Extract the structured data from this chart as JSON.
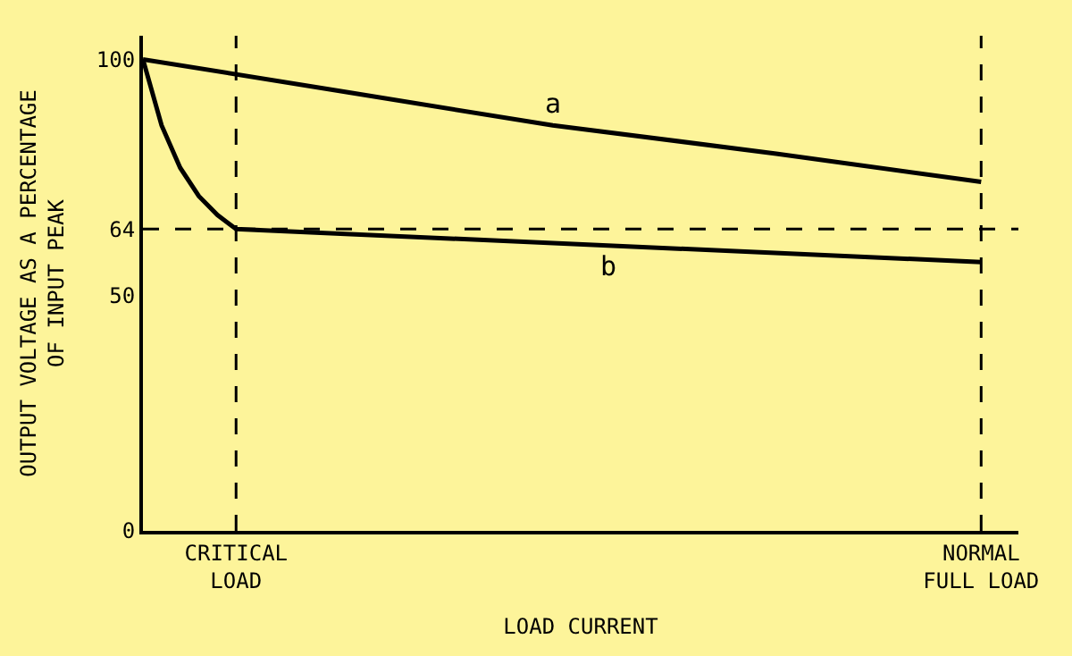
{
  "chart_data": {
    "type": "line",
    "xlabel": "LOAD CURRENT",
    "ylabel": "OUTPUT VOLTAGE AS A PERCENTAGE\nOF INPUT PEAK",
    "categories": [
      null,
      null,
      null,
      null,
      null,
      "CRITICAL\nLOAD",
      null,
      null,
      null,
      null,
      null,
      null,
      null,
      null,
      null,
      null,
      null,
      null,
      null,
      null,
      null,
      null,
      null,
      null,
      null,
      null,
      null,
      null,
      null,
      null,
      null,
      null,
      null,
      null,
      null,
      null,
      null,
      null,
      null,
      null,
      null,
      null,
      null,
      null,
      null,
      "NORMAL\nFULL LOAD",
      null,
      null
    ],
    "series": [
      {
        "name": "a",
        "color": "#000000",
        "values": [
          100,
          null,
          null,
          null,
          null,
          null,
          null,
          null,
          null,
          null,
          null,
          93,
          null,
          null,
          null,
          null,
          null,
          null,
          null,
          null,
          null,
          null,
          86,
          null,
          null,
          null,
          null,
          null,
          null,
          null,
          null,
          null,
          null,
          null,
          80,
          null,
          null,
          null,
          null,
          null,
          null,
          null,
          null,
          null,
          null,
          74,
          null,
          null
        ]
      },
      {
        "name": "b",
        "color": "#000000",
        "values": [
          100,
          86,
          77,
          71,
          67,
          64,
          null,
          null,
          null,
          null,
          null,
          null,
          null,
          null,
          null,
          null,
          null,
          null,
          null,
          null,
          null,
          null,
          null,
          null,
          null,
          null,
          null,
          null,
          null,
          null,
          null,
          null,
          null,
          null,
          null,
          null,
          null,
          null,
          null,
          null,
          null,
          null,
          null,
          null,
          null,
          57,
          null,
          null
        ]
      }
    ],
    "ylim": [
      0,
      105
    ],
    "yticks": [
      0,
      50,
      64,
      100
    ],
    "ref_lines": [
      {
        "axis": "y",
        "value": 64,
        "line_style": "dashed"
      },
      {
        "axis": "x",
        "value": "CRITICAL\nLOAD",
        "line_style": "dashed"
      },
      {
        "axis": "x",
        "value": "NORMAL\nFULL LOAD",
        "line_style": "dashed"
      }
    ],
    "grid": false,
    "legend": false,
    "marker": "none",
    "line_style": "solid"
  }
}
